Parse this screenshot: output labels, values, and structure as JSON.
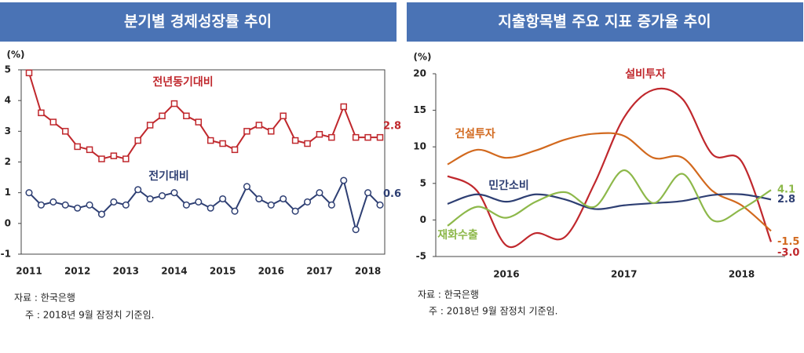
{
  "chart_data": [
    {
      "type": "line",
      "title": "분기별 경제성장률 추이",
      "unit": "(%)",
      "categories": [
        "2011",
        null,
        null,
        null,
        "2012",
        null,
        null,
        null,
        "2013",
        null,
        null,
        null,
        "2014",
        null,
        null,
        null,
        "2015",
        null,
        null,
        null,
        "2016",
        null,
        null,
        null,
        "2017",
        null,
        null,
        null,
        "2018",
        null
      ],
      "series": [
        {
          "name": "전년동기대비",
          "color": "#c0282d",
          "marker": "square",
          "values": [
            4.9,
            3.6,
            3.3,
            3.0,
            2.5,
            2.4,
            2.1,
            2.2,
            2.1,
            2.7,
            3.2,
            3.5,
            3.9,
            3.5,
            3.3,
            2.7,
            2.6,
            2.4,
            3.0,
            3.2,
            3.0,
            3.5,
            2.7,
            2.6,
            2.9,
            2.8,
            3.8,
            2.8,
            2.8,
            2.8
          ]
        },
        {
          "name": "전기대비",
          "color": "#2e3f73",
          "marker": "circle",
          "values": [
            1.0,
            0.6,
            0.7,
            0.6,
            0.5,
            0.6,
            0.3,
            0.7,
            0.6,
            1.1,
            0.8,
            0.9,
            1.0,
            0.6,
            0.7,
            0.5,
            0.8,
            0.4,
            1.2,
            0.8,
            0.6,
            0.8,
            0.4,
            0.7,
            1.0,
            0.6,
            1.4,
            -0.2,
            1.0,
            0.6
          ]
        }
      ],
      "ylim": [
        -1,
        5
      ],
      "yticks": [
        -1,
        0,
        1,
        2,
        3,
        4,
        5
      ],
      "smooth": false,
      "notes": [
        "자료 : 한국은행",
        "주 : 2018년 9월 잠정치 기준임."
      ]
    },
    {
      "type": "line",
      "title": "지출항목별 주요 지표 증가율 추이",
      "unit": "(%)",
      "categories": [
        null,
        null,
        "2016",
        null,
        null,
        null,
        "2017",
        null,
        null,
        null,
        "2018",
        null
      ],
      "series": [
        {
          "name": "설비투자",
          "color": "#c0282d",
          "values": [
            6,
            4,
            -3.5,
            -1.8,
            -2.3,
            5,
            14,
            17.8,
            16.5,
            9,
            8,
            -3.0
          ],
          "value_labels": [
            null,
            null,
            null,
            null,
            null,
            null,
            null,
            null,
            null,
            null,
            null,
            "-3.0"
          ]
        },
        {
          "name": "건설투자",
          "color": "#d2691e",
          "values": [
            7.6,
            9.6,
            8.5,
            9.5,
            11,
            11.8,
            11.5,
            8.5,
            8.5,
            4,
            2,
            -1.5
          ]
        },
        {
          "name": "민간소비",
          "color": "#2e3f73",
          "values": [
            2.2,
            3.5,
            2.5,
            3.5,
            2.8,
            1.5,
            2.0,
            2.3,
            2.6,
            3.4,
            3.5,
            2.8
          ]
        },
        {
          "name": "재화수출",
          "color": "#8db84a",
          "values": [
            -0.8,
            1.8,
            0.3,
            2.5,
            3.8,
            1.8,
            6.8,
            2.3,
            6.3,
            0,
            1.5,
            4.1
          ]
        }
      ],
      "ylim": [
        -5,
        20
      ],
      "yticks": [
        -5,
        0,
        5,
        10,
        15,
        20
      ],
      "smooth": true,
      "notes": [
        "자료 : 한국은행",
        "주 : 2018년 9월 잠정치 기준임."
      ]
    }
  ]
}
